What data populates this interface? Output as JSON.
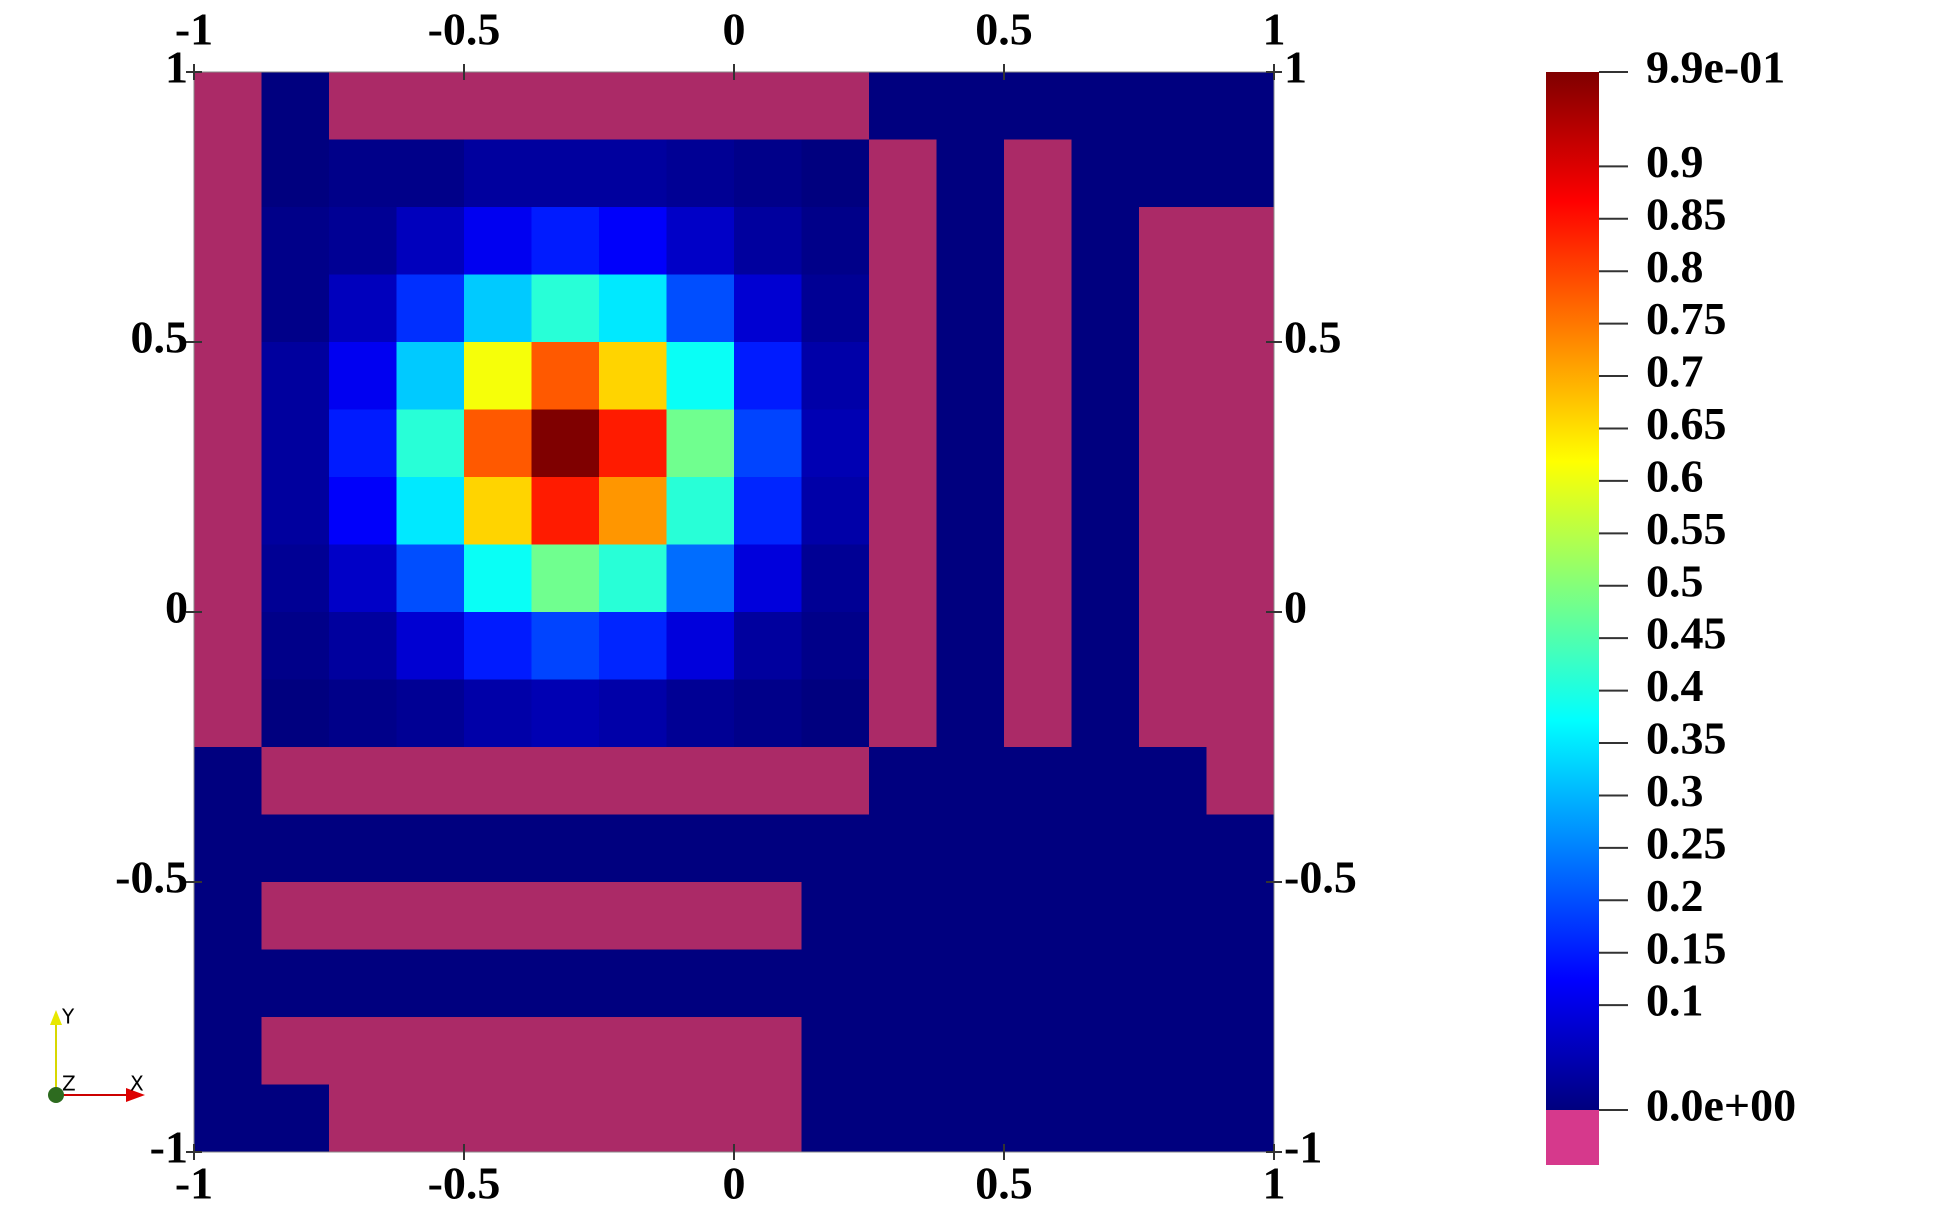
{
  "chart_data": {
    "type": "field",
    "xlim": [
      -1,
      1
    ],
    "ylim": [
      -1,
      1
    ],
    "xticks": [
      -1,
      -0.5,
      0,
      0.5,
      1
    ],
    "yticks": [
      -1,
      -0.5,
      0,
      0.5,
      1
    ],
    "x": [
      -0.9375,
      -0.8125,
      -0.6875,
      -0.5625,
      -0.4375,
      -0.3125,
      -0.1875,
      -0.0625,
      0.0625,
      0.1875,
      0.3125,
      0.4375,
      0.5625,
      0.6875,
      0.8125,
      0.9375
    ],
    "y": [
      0.9375,
      0.8125,
      0.6875,
      0.5625,
      0.4375,
      0.3125,
      0.1875,
      0.0625,
      -0.0625,
      -0.1875,
      -0.3125,
      -0.4375,
      -0.5625,
      -0.6875,
      -0.8125,
      -0.9375
    ],
    "values": [
      [
        -0.01,
        0,
        -0.01,
        -0.01,
        -0.01,
        -0.01,
        -0.01,
        -0.01,
        -0.01,
        -0.01,
        0,
        0,
        0,
        0,
        0,
        0
      ],
      [
        -0.01,
        0.0,
        0.01,
        0.01,
        0.03,
        0.03,
        0.03,
        0.02,
        0.01,
        0.0,
        -0.01,
        0,
        -0.01,
        0,
        0,
        0
      ],
      [
        -0.01,
        0.01,
        0.02,
        0.06,
        0.11,
        0.15,
        0.12,
        0.07,
        0.03,
        0.01,
        -0.01,
        0,
        -0.01,
        0,
        -0.01,
        -0.01
      ],
      [
        -0.01,
        0.01,
        0.06,
        0.17,
        0.32,
        0.41,
        0.35,
        0.2,
        0.08,
        0.02,
        -0.01,
        0,
        -0.01,
        0,
        -0.01,
        -0.01
      ],
      [
        -0.01,
        0.03,
        0.11,
        0.32,
        0.61,
        0.78,
        0.66,
        0.38,
        0.15,
        0.04,
        -0.01,
        0,
        -0.01,
        0,
        -0.01,
        -0.01
      ],
      [
        -0.01,
        0.03,
        0.15,
        0.41,
        0.78,
        0.99,
        0.84,
        0.48,
        0.19,
        0.05,
        -0.01,
        0,
        -0.01,
        0,
        -0.01,
        -0.01
      ],
      [
        -0.01,
        0.03,
        0.12,
        0.35,
        0.66,
        0.84,
        0.72,
        0.41,
        0.16,
        0.04,
        -0.01,
        0,
        -0.01,
        0,
        -0.01,
        -0.01
      ],
      [
        -0.01,
        0.02,
        0.07,
        0.2,
        0.38,
        0.48,
        0.41,
        0.23,
        0.09,
        0.02,
        -0.01,
        0,
        -0.01,
        0,
        -0.01,
        -0.01
      ],
      [
        -0.01,
        0.01,
        0.03,
        0.08,
        0.15,
        0.19,
        0.16,
        0.09,
        0.03,
        0.01,
        -0.01,
        0,
        -0.01,
        0,
        -0.01,
        -0.01
      ],
      [
        -0.01,
        0.0,
        0.01,
        0.02,
        0.04,
        0.05,
        0.04,
        0.02,
        0.01,
        0.0,
        -0.01,
        0,
        -0.01,
        0,
        -0.01,
        -0.01
      ],
      [
        0,
        -0.01,
        -0.01,
        -0.01,
        -0.01,
        -0.01,
        -0.01,
        -0.01,
        -0.01,
        -0.01,
        0,
        0,
        0,
        0,
        0,
        -0.01
      ],
      [
        0,
        0,
        0,
        0,
        0,
        0,
        0,
        0,
        0,
        0,
        0,
        0,
        0,
        0,
        0,
        0
      ],
      [
        0,
        -0.01,
        -0.01,
        -0.01,
        -0.01,
        -0.01,
        -0.01,
        -0.01,
        -0.01,
        0,
        0,
        0,
        0,
        0,
        0,
        0
      ],
      [
        0,
        0,
        0,
        0,
        0,
        0,
        0,
        0,
        0,
        0,
        0,
        0,
        0,
        0,
        0,
        0
      ],
      [
        0,
        -0.01,
        -0.01,
        -0.01,
        -0.01,
        -0.01,
        -0.01,
        -0.01,
        -0.01,
        0,
        0,
        0,
        0,
        0,
        0,
        0
      ],
      [
        0,
        0,
        -0.01,
        -0.01,
        -0.01,
        -0.01,
        -0.01,
        -0.01,
        -0.01,
        0,
        0,
        0,
        0,
        0,
        0,
        0
      ]
    ],
    "clim": [
      0,
      0.99
    ],
    "colormap": [
      "#00007f",
      "#0000ff",
      "#007fff",
      "#00ffff",
      "#7fff7f",
      "#ffff00",
      "#ff7f00",
      "#ff0000",
      "#7f0000"
    ],
    "below_range_color": "#ab2a67",
    "colorbar_ticks": [
      {
        "value": 0.99,
        "label": "9.9e-01"
      },
      0.9,
      0.85,
      0.8,
      0.75,
      0.7,
      0.65,
      0.6,
      0.55,
      0.5,
      0.45,
      0.4,
      0.35,
      0.3,
      0.25,
      0.2,
      0.15,
      0.1,
      {
        "value": 0,
        "label": "0.0e+00"
      }
    ]
  },
  "orientation_axes": {
    "x": "X",
    "y": "Y",
    "z": "Z"
  }
}
